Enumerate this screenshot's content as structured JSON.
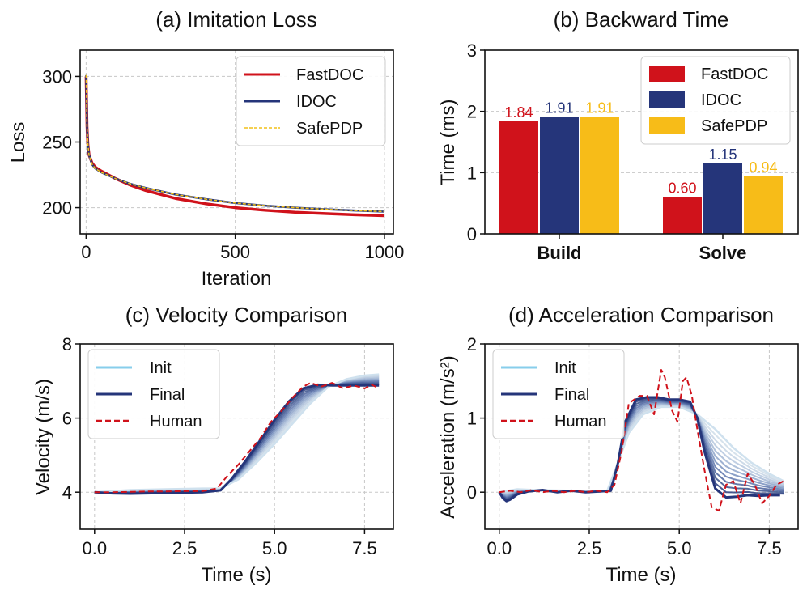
{
  "chart_data": [
    {
      "id": "a",
      "type": "line",
      "title": "(a) Imitation Loss",
      "xlabel": "Iteration",
      "ylabel": "Loss",
      "xlim": [
        -20,
        1030
      ],
      "ylim": [
        180,
        320
      ],
      "xticks": [
        0,
        500,
        1000
      ],
      "yticks": [
        200,
        250,
        300
      ],
      "grid": true,
      "legend_position": "top-right",
      "series": [
        {
          "name": "FastDOC",
          "color": "#d0121b",
          "style": "solid",
          "width": 3.5,
          "x": [
            0,
            3,
            6,
            10,
            20,
            30,
            50,
            100,
            150,
            200,
            300,
            400,
            500,
            600,
            700,
            800,
            900,
            1000
          ],
          "y": [
            300,
            262,
            248,
            240,
            234,
            231,
            228,
            222,
            217,
            213,
            207,
            203,
            200,
            198,
            196.5,
            195.5,
            194.6,
            193.9
          ]
        },
        {
          "name": "IDOC",
          "color": "#25357a",
          "style": "solid",
          "width": 2.5,
          "x": [
            0,
            3,
            6,
            10,
            20,
            30,
            50,
            100,
            150,
            200,
            300,
            400,
            500,
            600,
            700,
            800,
            900,
            1000
          ],
          "y": [
            301,
            262,
            248,
            240,
            233,
            230,
            227,
            222,
            218,
            215,
            210,
            206.5,
            203.5,
            201.5,
            200,
            198.8,
            197.8,
            197
          ]
        },
        {
          "name": "SafePDP",
          "color": "#f2c018",
          "style": "dashed",
          "width": 1.5,
          "x": [
            0,
            3,
            6,
            10,
            20,
            30,
            50,
            100,
            150,
            200,
            300,
            400,
            500,
            600,
            700,
            800,
            900,
            1000
          ],
          "y": [
            301,
            262,
            248,
            240,
            233,
            230,
            227,
            222,
            218,
            215,
            210,
            206.5,
            203.5,
            201.5,
            200,
            198.8,
            197.8,
            197
          ]
        }
      ]
    },
    {
      "id": "b",
      "type": "bar",
      "title": "(b) Backward Time",
      "xlabel": "",
      "ylabel": "Time (ms)",
      "ylim": [
        0,
        3
      ],
      "yticks": [
        0,
        1,
        2,
        3
      ],
      "grid": true,
      "legend_position": "top-right",
      "categories": [
        "Build",
        "Solve"
      ],
      "series": [
        {
          "name": "FastDOC",
          "color": "#d0121b",
          "values": [
            1.84,
            0.6
          ],
          "labels": [
            "1.84",
            "0.60"
          ]
        },
        {
          "name": "IDOC",
          "color": "#25357a",
          "values": [
            1.91,
            1.15
          ],
          "labels": [
            "1.91",
            "1.15"
          ]
        },
        {
          "name": "SafePDP",
          "color": "#f7bc18",
          "values": [
            1.91,
            0.94
          ],
          "labels": [
            "1.91",
            "0.94"
          ]
        }
      ]
    },
    {
      "id": "c",
      "type": "line",
      "title": "(c) Velocity Comparison",
      "xlabel": "Time (s)",
      "ylabel": "Velocity (m/s)",
      "xlim": [
        -0.4,
        8.3
      ],
      "ylim": [
        3,
        8
      ],
      "xticks": [
        "0.0",
        "2.5",
        "5.0",
        "7.5"
      ],
      "yticks": [
        4,
        6,
        8
      ],
      "grid": true,
      "legend_position": "top-left",
      "legend": [
        {
          "name": "Init",
          "color": "#87ceeb",
          "style": "solid"
        },
        {
          "name": "Final",
          "color": "#25357a",
          "style": "solid"
        },
        {
          "name": "Human",
          "color": "#d0121b",
          "style": "dashed"
        }
      ],
      "iteration_shades": [
        "#cfdde9",
        "#c4d3e4",
        "#b5c7de",
        "#a3b7d5",
        "#8ea5ca",
        "#778fbd",
        "#5f77ad",
        "#4a619c",
        "#38508b",
        "#2a3d7e"
      ],
      "init": {
        "x": [
          0,
          0.5,
          1,
          2,
          3,
          3.5,
          4,
          4.5,
          5,
          5.5,
          6,
          6.5,
          7,
          7.5,
          7.9
        ],
        "y": [
          4,
          4.03,
          4.06,
          4.08,
          4.1,
          4.1,
          4.35,
          4.8,
          5.3,
          5.85,
          6.4,
          6.85,
          7.05,
          7.15,
          7.18
        ]
      },
      "final": {
        "x": [
          0,
          0.5,
          1,
          2,
          3,
          3.5,
          3.8,
          4.2,
          4.6,
          5,
          5.4,
          5.8,
          6.2,
          6.6,
          7,
          7.5,
          7.9
        ],
        "y": [
          4,
          3.97,
          3.96,
          3.98,
          4.0,
          4.05,
          4.35,
          4.85,
          5.4,
          5.95,
          6.45,
          6.8,
          6.9,
          6.88,
          6.88,
          6.88,
          6.88
        ]
      },
      "human": {
        "x": [
          0,
          0.5,
          1,
          1.5,
          2,
          2.5,
          3,
          3.4,
          3.7,
          4.0,
          4.3,
          4.6,
          4.9,
          5.2,
          5.5,
          5.8,
          6.0,
          6.3,
          6.6,
          6.9,
          7.2,
          7.5,
          7.7,
          7.9
        ],
        "y": [
          4,
          4.0,
          4.01,
          4.02,
          4.02,
          4.03,
          4.03,
          4.1,
          4.45,
          4.75,
          5.1,
          5.45,
          5.9,
          6.2,
          6.55,
          6.85,
          6.95,
          6.85,
          6.95,
          6.8,
          6.88,
          6.8,
          6.9,
          6.8
        ]
      }
    },
    {
      "id": "d",
      "type": "line",
      "title": "(d) Acceleration Comparison",
      "xlabel": "Time (s)",
      "ylabel": "Acceleration (m/s²)",
      "xlim": [
        -0.4,
        8.3
      ],
      "ylim": [
        -0.5,
        2
      ],
      "xticks": [
        "0.0",
        "2.5",
        "5.0",
        "7.5"
      ],
      "yticks": [
        0,
        1,
        2
      ],
      "grid": true,
      "legend_position": "top-left",
      "legend": [
        {
          "name": "Init",
          "color": "#87ceeb",
          "style": "solid"
        },
        {
          "name": "Final",
          "color": "#25357a",
          "style": "solid"
        },
        {
          "name": "Human",
          "color": "#d0121b",
          "style": "dashed"
        }
      ],
      "iteration_shades": [
        "#cfdde9",
        "#c4d3e4",
        "#b5c7de",
        "#a3b7d5",
        "#8ea5ca",
        "#778fbd",
        "#5f77ad",
        "#4a619c",
        "#38508b",
        "#2a3d7e"
      ],
      "init": {
        "x": [
          0,
          0.5,
          1,
          2,
          3,
          3.3,
          3.6,
          4.0,
          4.5,
          5.0,
          5.5,
          6.0,
          6.5,
          7.0,
          7.5,
          7.9
        ],
        "y": [
          0,
          0.04,
          0.03,
          0.02,
          0.02,
          0.4,
          0.8,
          1.05,
          1.15,
          1.15,
          1.05,
          0.85,
          0.6,
          0.4,
          0.25,
          0.15
        ]
      },
      "final": {
        "x": [
          0,
          0.1,
          0.2,
          0.3,
          0.5,
          0.8,
          1.2,
          1.6,
          2.0,
          2.4,
          2.8,
          3.1,
          3.3,
          3.5,
          3.8,
          4.1,
          4.4,
          4.7,
          5.0,
          5.3,
          5.5,
          5.7,
          6.0,
          6.3,
          6.6,
          6.9,
          7.2,
          7.5,
          7.8
        ],
        "y": [
          0,
          -0.08,
          -0.12,
          -0.1,
          -0.03,
          0.01,
          0.03,
          0.0,
          0.02,
          0.0,
          0.01,
          0.02,
          0.4,
          0.95,
          1.25,
          1.28,
          1.28,
          1.25,
          1.25,
          1.22,
          1.0,
          0.55,
          0.05,
          -0.07,
          -0.06,
          -0.04,
          -0.05,
          -0.04,
          -0.04
        ]
      },
      "human": {
        "x": [
          0,
          0.3,
          0.6,
          0.9,
          1.2,
          1.5,
          1.8,
          2.1,
          2.4,
          2.7,
          3.0,
          3.2,
          3.4,
          3.6,
          3.9,
          4.1,
          4.3,
          4.5,
          4.6,
          4.8,
          4.95,
          5.1,
          5.2,
          5.35,
          5.5,
          5.7,
          5.9,
          6.1,
          6.3,
          6.5,
          6.7,
          6.9,
          7.1,
          7.3,
          7.5,
          7.7,
          7.9
        ],
        "y": [
          0,
          0.02,
          0.0,
          0.03,
          0.0,
          0.02,
          0.0,
          0.02,
          0.0,
          0.02,
          0.0,
          0.1,
          0.55,
          1.2,
          1.3,
          1.3,
          1.05,
          1.65,
          1.55,
          1.1,
          0.95,
          1.5,
          1.55,
          1.3,
          0.85,
          0.3,
          -0.2,
          -0.25,
          0.1,
          0.15,
          -0.15,
          0.25,
          0.1,
          -0.15,
          -0.05,
          0.1,
          0.15
        ]
      }
    }
  ]
}
